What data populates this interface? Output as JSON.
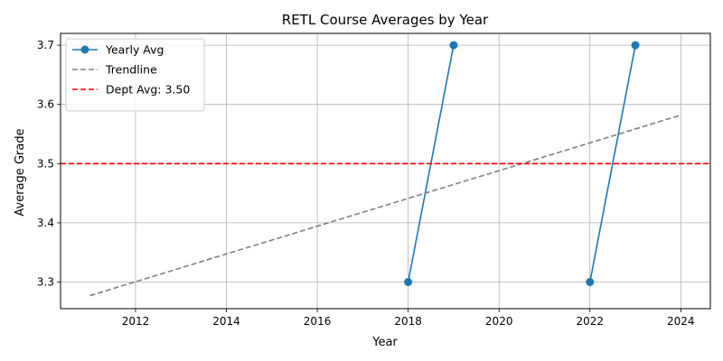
{
  "chart_data": {
    "type": "line",
    "title": "RETL Course Averages by Year",
    "xlabel": "Year",
    "ylabel": "Average Grade",
    "xlim": [
      2010.35,
      2024.65
    ],
    "ylim": [
      3.255,
      3.72
    ],
    "xticks": [
      2012,
      2014,
      2016,
      2018,
      2020,
      2022,
      2024
    ],
    "yticks": [
      3.3,
      3.4,
      3.5,
      3.6,
      3.7
    ],
    "xtick_labels": [
      "2012",
      "2014",
      "2016",
      "2018",
      "2020",
      "2022",
      "2024"
    ],
    "ytick_labels": [
      "3.3",
      "3.4",
      "3.5",
      "3.6",
      "3.7"
    ],
    "grid": true,
    "legend_position": "top-left",
    "series": [
      {
        "name": "Yearly Avg",
        "style": "solid-markers",
        "color": "#1f77b4",
        "x": [
          2018,
          2019,
          2022,
          2023
        ],
        "y": [
          3.3,
          3.7,
          3.3,
          3.7
        ],
        "segments": [
          [
            0,
            1
          ],
          [
            2,
            3
          ]
        ]
      },
      {
        "name": "Trendline",
        "style": "dashed",
        "color": "#808080",
        "x": [
          2011,
          2024
        ],
        "y": [
          3.277,
          3.582
        ]
      },
      {
        "name": "Dept Avg: 3.50",
        "style": "dashed",
        "color": "#ff0000",
        "hline": 3.5
      }
    ]
  }
}
